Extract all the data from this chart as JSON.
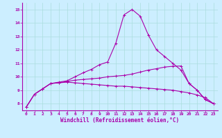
{
  "xlabel": "Windchill (Refroidissement éolien,°C)",
  "bg_color": "#cceeff",
  "grid_color": "#aadddd",
  "line_color": "#aa00aa",
  "xlim": [
    -0.5,
    23.5
  ],
  "ylim": [
    7.5,
    15.5
  ],
  "x_ticks": [
    0,
    1,
    2,
    3,
    4,
    5,
    6,
    7,
    8,
    9,
    10,
    11,
    12,
    13,
    14,
    15,
    16,
    17,
    18,
    19,
    20,
    21,
    22,
    23
  ],
  "y_ticks": [
    8,
    9,
    10,
    11,
    12,
    13,
    14,
    15
  ],
  "curve1_x": [
    0,
    1,
    2,
    3,
    4,
    5,
    6,
    7,
    8,
    9,
    10,
    11,
    12,
    13,
    14,
    15,
    16,
    17,
    18,
    19,
    20,
    21,
    22,
    23
  ],
  "curve1_y": [
    7.75,
    8.7,
    9.1,
    9.5,
    9.6,
    9.7,
    10.0,
    10.3,
    10.55,
    10.9,
    11.1,
    12.5,
    14.6,
    15.0,
    14.5,
    13.1,
    12.0,
    11.5,
    11.0,
    10.5,
    9.5,
    9.0,
    8.3,
    8.0
  ],
  "curve2_x": [
    0,
    1,
    2,
    3,
    4,
    5,
    6,
    7,
    8,
    9,
    10,
    11,
    12,
    13,
    14,
    15,
    16,
    17,
    18,
    19,
    20,
    21,
    22,
    23
  ],
  "curve2_y": [
    7.75,
    8.7,
    9.1,
    9.5,
    9.55,
    9.6,
    9.55,
    9.5,
    9.45,
    9.4,
    9.35,
    9.3,
    9.3,
    9.25,
    9.2,
    9.15,
    9.1,
    9.05,
    9.0,
    8.9,
    8.8,
    8.65,
    8.45,
    8.0
  ],
  "curve3_x": [
    0,
    1,
    2,
    3,
    4,
    5,
    6,
    7,
    8,
    9,
    10,
    11,
    12,
    13,
    14,
    15,
    16,
    17,
    18,
    19,
    20,
    21,
    22,
    23
  ],
  "curve3_y": [
    7.75,
    8.7,
    9.1,
    9.5,
    9.55,
    9.65,
    9.75,
    9.8,
    9.85,
    9.9,
    10.0,
    10.05,
    10.1,
    10.2,
    10.35,
    10.5,
    10.6,
    10.72,
    10.78,
    10.8,
    9.5,
    9.0,
    8.3,
    8.0
  ]
}
